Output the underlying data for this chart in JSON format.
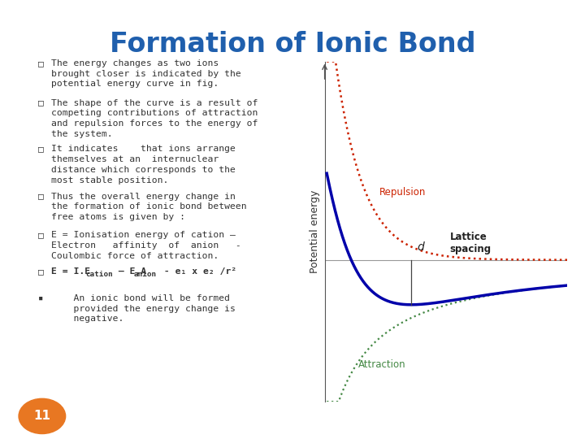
{
  "title": "Formation of Ionic Bond",
  "title_color": "#1F5FAD",
  "title_fontsize": 24,
  "background_color": "#FFFFFF",
  "slide_number": "11",
  "slide_number_bg": "#E87722",
  "bullet_color": "#333333",
  "bullet_fontsize": 8.2,
  "graph_ylabel": "Potential energy",
  "repulsion_label": "Repulsion",
  "repulsion_color": "#CC2200",
  "attraction_label": "Attraction",
  "attraction_color": "#448844",
  "net_curve_color": "#0000AA",
  "lattice_label": "Lattice\nspacing",
  "d_label": "d",
  "border_color": "#BBBBBB"
}
